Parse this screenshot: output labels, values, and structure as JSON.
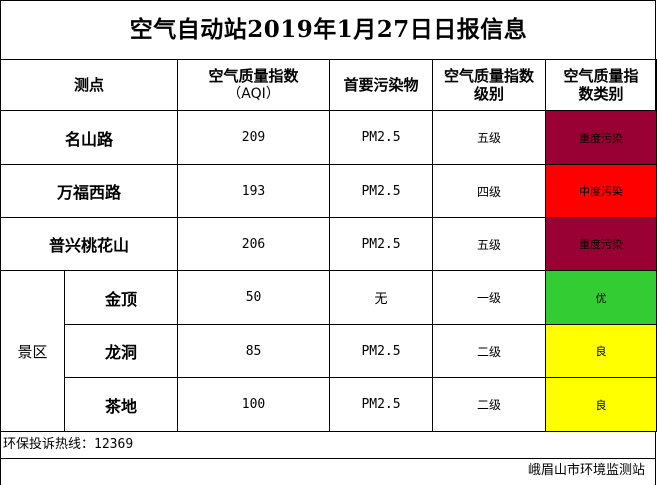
{
  "title": "空气自动站2019年1月27日日报信息",
  "headers": {
    "site": "测点",
    "aqi": "空气质量指数",
    "aqi_sub": "（AQI）",
    "pollutant": "首要污染物",
    "grade_l1": "空气质量指数",
    "grade_l2": "级别",
    "category_l1": "空气质量指",
    "category_l2": "数类别"
  },
  "rows": [
    {
      "name": "名山路",
      "aqi": "209",
      "pollutant": "PM2.5",
      "grade": "五级",
      "category": "重度污染",
      "color": "#990033"
    },
    {
      "name": "万福西路",
      "aqi": "193",
      "pollutant": "PM2.5",
      "grade": "四级",
      "category": "中度污染",
      "color": "#FF0000"
    },
    {
      "name": "普兴桃花山",
      "aqi": "206",
      "pollutant": "PM2.5",
      "grade": "五级",
      "category": "重度污染",
      "color": "#990033"
    }
  ],
  "scenic": {
    "label": "景区",
    "rows": [
      {
        "name": "金顶",
        "aqi": "50",
        "pollutant": "无",
        "grade": "一级",
        "category": "优",
        "color": "#33CC33"
      },
      {
        "name": "龙洞",
        "aqi": "85",
        "pollutant": "PM2.5",
        "grade": "二级",
        "category": "良",
        "color": "#FFFF00"
      },
      {
        "name": "茶地",
        "aqi": "100",
        "pollutant": "PM2.5",
        "grade": "二级",
        "category": "良",
        "color": "#FFFF00"
      }
    ]
  },
  "footer": {
    "hotline_label": "环保投诉热线：",
    "hotline_number": "12369",
    "agency": "峨眉山市环境监测站"
  }
}
